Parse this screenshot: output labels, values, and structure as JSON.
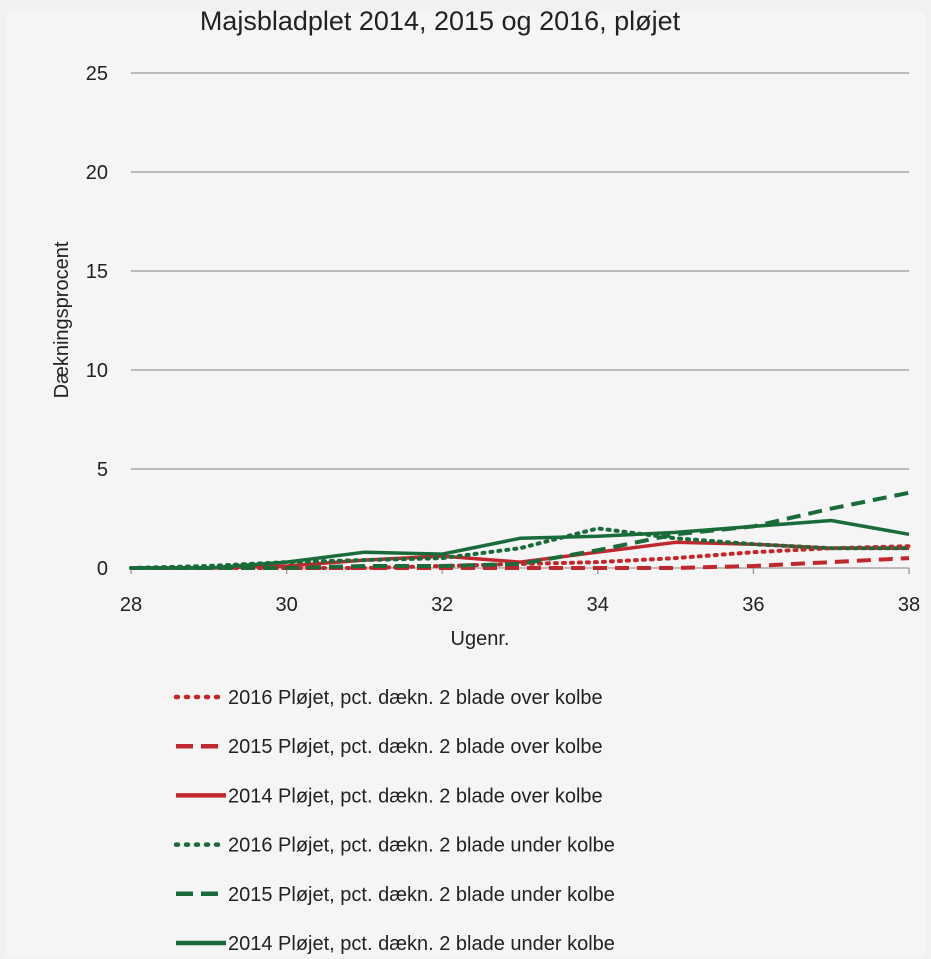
{
  "chart_data": {
    "type": "line",
    "title": "Majsbladplet 2014, 2015 og 2016, pløjet",
    "xlabel": "Ugenr.",
    "ylabel": "Dækningsprocent",
    "xlim": [
      28,
      38
    ],
    "ylim": [
      0,
      25
    ],
    "x_ticks": [
      "28",
      "30",
      "32",
      "34",
      "36",
      "38"
    ],
    "y_ticks": [
      "0",
      "5",
      "10",
      "15",
      "20",
      "25"
    ],
    "grid": "horizontal",
    "legend_position": "bottom",
    "series": [
      {
        "name": "2016 Pløjet, pct. dækn. 2 blade over kolbe",
        "color": "#c0282d",
        "style": "dotted",
        "x": [
          28,
          29,
          30,
          31,
          32,
          33,
          34,
          35,
          36,
          37,
          38
        ],
        "y": [
          0,
          0,
          0,
          0,
          0.1,
          0.2,
          0.3,
          0.5,
          0.8,
          1.0,
          1.1
        ]
      },
      {
        "name": "2015 Pløjet, pct. dækn. 2 blade over kolbe",
        "color": "#c0282d",
        "style": "dashed",
        "x": [
          28,
          29,
          30,
          31,
          32,
          33,
          34,
          35,
          36,
          37,
          38
        ],
        "y": [
          0,
          0,
          0,
          0,
          0,
          0,
          0,
          0,
          0.1,
          0.3,
          0.5
        ]
      },
      {
        "name": "2014 Pløjet, pct. dækn. 2 blade over kolbe",
        "color": "#c0282d",
        "style": "solid",
        "x": [
          28,
          29,
          30,
          31,
          32,
          33,
          34,
          35,
          36,
          37,
          38
        ],
        "y": [
          0,
          0,
          0.1,
          0.4,
          0.6,
          0.3,
          0.8,
          1.3,
          1.2,
          1.0,
          1.0
        ]
      },
      {
        "name": "2016 Pløjet, pct. dækn. 2 blade under kolbe",
        "color": "#1a6b3a",
        "style": "dotted",
        "x": [
          28,
          29,
          30,
          31,
          32,
          33,
          34,
          35,
          36,
          37,
          38
        ],
        "y": [
          0,
          0.1,
          0.3,
          0.4,
          0.5,
          1.0,
          2.0,
          1.5,
          1.2,
          1.0,
          1.0
        ]
      },
      {
        "name": "2015 Pløjet, pct. dækn. 2 blade under kolbe",
        "color": "#1a6b3a",
        "style": "dashed",
        "x": [
          28,
          29,
          30,
          31,
          32,
          33,
          34,
          35,
          36,
          37,
          38
        ],
        "y": [
          0,
          0,
          0,
          0.1,
          0.1,
          0.2,
          0.9,
          1.7,
          2.1,
          3.0,
          3.8
        ]
      },
      {
        "name": "2014 Pløjet, pct. dækn. 2 blade under kolbe",
        "color": "#1a6b3a",
        "style": "solid",
        "x": [
          28,
          29,
          30,
          31,
          32,
          33,
          34,
          35,
          36,
          37,
          38
        ],
        "y": [
          0,
          0,
          0.3,
          0.8,
          0.7,
          1.5,
          1.6,
          1.8,
          2.1,
          2.4,
          1.7
        ]
      }
    ]
  }
}
